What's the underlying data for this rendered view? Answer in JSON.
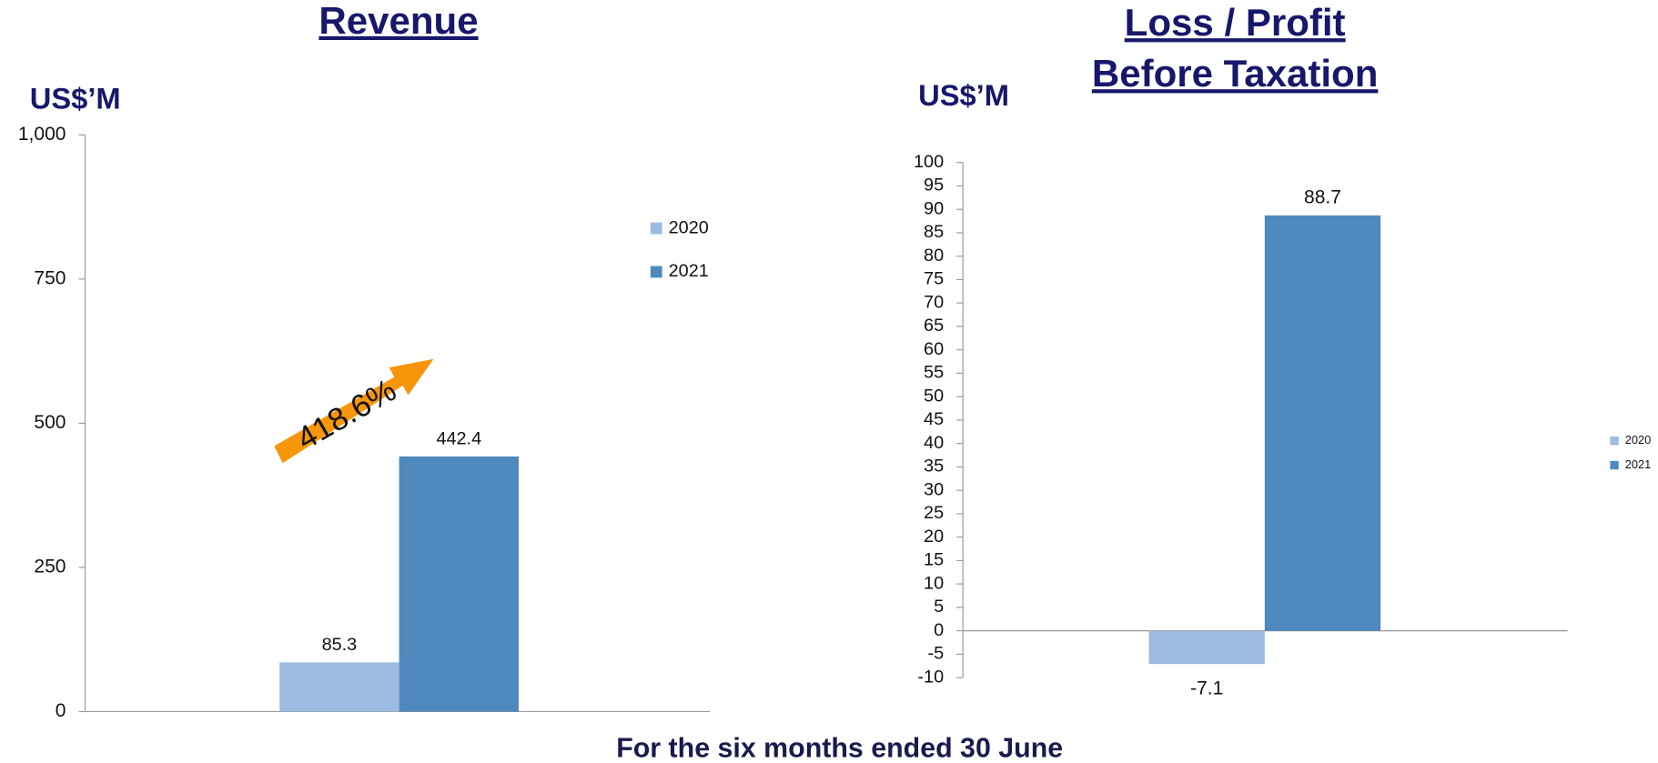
{
  "chart_data": [
    {
      "type": "bar",
      "title": [
        "Revenue"
      ],
      "ylabel": "US$’M",
      "series": [
        {
          "name": "2020",
          "color": "#9dbbe0",
          "values": [
            85.3
          ]
        },
        {
          "name": "2021",
          "color": "#4f88bc",
          "values": [
            442.4
          ]
        }
      ],
      "ylim": [
        0,
        1000
      ],
      "yticks": [
        0,
        250,
        500,
        750,
        {
          "value": 1000,
          "label": "1,000"
        }
      ],
      "annotations": [
        "418.6%"
      ],
      "legend": "right"
    },
    {
      "type": "bar",
      "title": [
        "Loss / Profit",
        "Before Taxation"
      ],
      "ylabel": "US$’M",
      "series": [
        {
          "name": "2020",
          "color": "#9dbbe0",
          "values": [
            -7.1
          ]
        },
        {
          "name": "2021",
          "color": "#4f88bc",
          "values": [
            88.7
          ]
        }
      ],
      "ylim": [
        -10,
        100
      ],
      "yticks": [
        -10,
        -5,
        0,
        5,
        10,
        15,
        20,
        25,
        30,
        35,
        40,
        45,
        50,
        55,
        60,
        65,
        70,
        75,
        80,
        85,
        90,
        95,
        100
      ],
      "legend": "right"
    }
  ],
  "footer": "For the six months ended 30 June"
}
